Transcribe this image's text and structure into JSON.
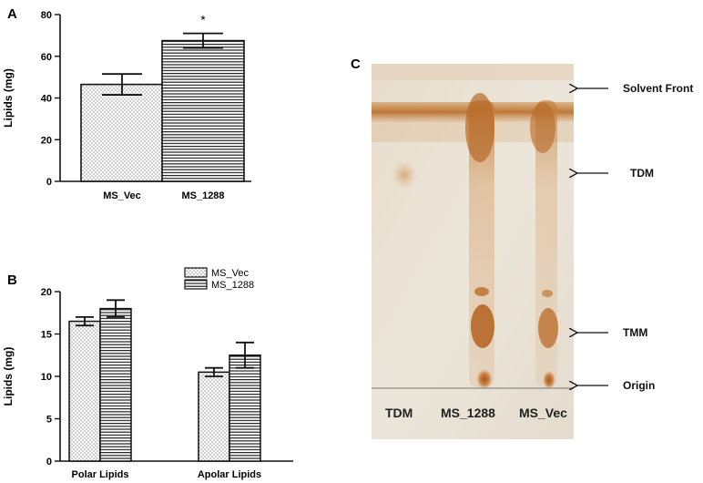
{
  "panels": {
    "a_label": "A",
    "b_label": "B",
    "c_label": "C"
  },
  "chart_data": [
    {
      "id": "A",
      "type": "bar",
      "categories": [
        "MS_Vec",
        "MS_1288"
      ],
      "values": [
        46.5,
        67.5
      ],
      "errors": [
        5,
        3.5
      ],
      "annotations": [
        "",
        "*"
      ],
      "ylabel": "Lipids (mg)",
      "xlabel": "",
      "ylim": [
        0,
        80
      ],
      "yticks": [
        0,
        20,
        40,
        60,
        80
      ],
      "patterns": [
        "dots",
        "hlines"
      ]
    },
    {
      "id": "B",
      "type": "bar",
      "categories": [
        "Polar Lipids",
        "Apolar Lipids"
      ],
      "series": [
        {
          "name": "MS_Vec",
          "values": [
            16.5,
            10.5
          ],
          "errors": [
            0.5,
            0.5
          ],
          "pattern": "dots"
        },
        {
          "name": "MS_1288",
          "values": [
            18,
            12.5
          ],
          "errors": [
            1,
            1.5
          ],
          "pattern": "hlines"
        }
      ],
      "ylabel": "Lipids (mg)",
      "xlabel": "",
      "ylim": [
        0,
        20
      ],
      "yticks": [
        0,
        5,
        10,
        15,
        20
      ],
      "legend_position": "top-right"
    }
  ],
  "tlc": {
    "lanes": [
      "TDM",
      "MS_1288",
      "MS_Vec"
    ],
    "annotations": [
      "Solvent Front",
      "TDM",
      "TMM",
      "Origin"
    ]
  }
}
